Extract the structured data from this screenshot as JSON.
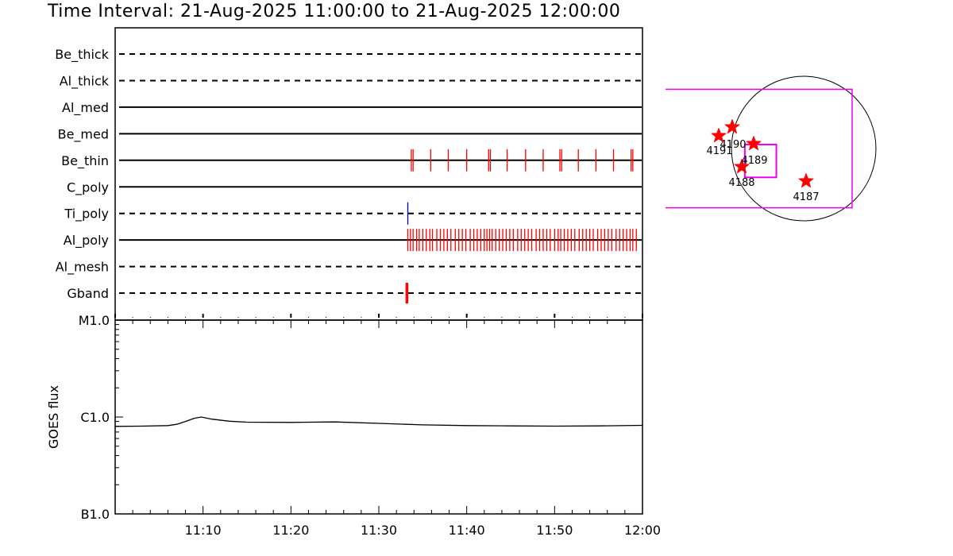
{
  "title": "Time Interval: 21-Aug-2025 11:00:00 to 21-Aug-2025 12:00:00",
  "chart_data": [
    {
      "type": "timeline",
      "x_range_minutes": [
        0,
        60
      ],
      "rows": [
        {
          "label": "Be_thick",
          "style": "dashed",
          "events": []
        },
        {
          "label": "Al_thick",
          "style": "dashed",
          "events": []
        },
        {
          "label": "Al_med",
          "style": "solid",
          "events": []
        },
        {
          "label": "Be_med",
          "style": "solid",
          "events": []
        },
        {
          "label": "Be_thin",
          "style": "solid",
          "color": "#ff0000",
          "events": [
            33.7,
            33.9,
            35.9,
            37.9,
            40.0,
            42.5,
            42.7,
            44.6,
            46.7,
            48.7,
            50.6,
            50.8,
            52.7,
            54.7,
            56.7,
            58.7,
            58.9
          ]
        },
        {
          "label": "C_poly",
          "style": "solid",
          "events": []
        },
        {
          "label": "Ti_poly",
          "style": "dashed",
          "color": "#0000cc",
          "events": [
            33.3
          ]
        },
        {
          "label": "Al_poly",
          "style": "solid",
          "color": "#ff0000",
          "events": [
            33.3,
            33.6,
            33.9,
            34.3,
            34.6,
            35.0,
            35.4,
            35.8,
            36.1,
            36.6,
            37.0,
            37.4,
            37.8,
            38.2,
            38.7,
            39.1,
            39.5,
            39.9,
            40.4,
            40.8,
            41.2,
            41.6,
            42.0,
            42.3,
            42.6,
            42.9,
            43.3,
            43.7,
            44.1,
            44.5,
            44.9,
            45.3,
            45.8,
            46.2,
            46.6,
            47.0,
            47.4,
            47.9,
            48.3,
            48.7,
            49.1,
            49.5,
            50.0,
            50.4,
            50.7,
            51.1,
            51.5,
            51.9,
            52.3,
            52.8,
            53.2,
            53.6,
            54.0,
            54.4,
            54.9,
            55.3,
            55.7,
            56.1,
            56.5,
            57.0,
            57.4,
            57.8,
            58.2,
            58.6,
            58.9,
            59.3
          ]
        },
        {
          "label": "Al_mesh",
          "style": "dashed",
          "events": []
        },
        {
          "label": "Gband",
          "style": "dashed",
          "color": "#ff0000",
          "events": [
            33.1,
            33.2,
            33.3
          ]
        }
      ]
    },
    {
      "type": "line",
      "ylabel": "GOES flux",
      "ylog": true,
      "ylim": [
        1e-07,
        1e-05
      ],
      "yticks": [
        {
          "label": "B1.0",
          "value": 1e-07
        },
        {
          "label": "C1.0",
          "value": 1e-06
        },
        {
          "label": "M1.0",
          "value": 1e-05
        }
      ],
      "xticks": [
        {
          "label": "11:10",
          "value": 10
        },
        {
          "label": "11:20",
          "value": 20
        },
        {
          "label": "11:30",
          "value": 30
        },
        {
          "label": "11:40",
          "value": 40
        },
        {
          "label": "11:50",
          "value": 50
        },
        {
          "label": "12:00",
          "value": 60
        }
      ],
      "x": [
        0,
        3,
        6,
        7,
        8,
        9,
        9.8,
        11,
        13,
        15,
        20,
        25,
        30,
        35,
        40,
        45,
        50,
        55,
        60
      ],
      "y": [
        8e-07,
        8.05e-07,
        8.15e-07,
        8.4e-07,
        9e-07,
        9.7e-07,
        1e-06,
        9.5e-07,
        9.05e-07,
        8.85e-07,
        8.8e-07,
        8.9e-07,
        8.6e-07,
        8.3e-07,
        8.15e-07,
        8.1e-07,
        8.05e-07,
        8.1e-07,
        8.2e-07
      ]
    },
    {
      "type": "scatter",
      "name": "solar-disk-map",
      "points": [
        {
          "label": "4187",
          "x": 0.67,
          "y": -0.32
        },
        {
          "label": "4188",
          "x": -0.09,
          "y": -0.17
        },
        {
          "label": "4189",
          "x": 0.06,
          "y": 0.04
        },
        {
          "label": "4190",
          "x": -0.18,
          "y": 0.19
        },
        {
          "label": "4191",
          "x": -0.28,
          "y": 0.11
        }
      ],
      "xlim": [
        -1.08,
        1.08
      ],
      "ylim": [
        -1.08,
        1.08
      ],
      "outer_box": {
        "x0": -0.82,
        "x1": 0.67,
        "y0": -0.82,
        "y1": 0.82
      },
      "selection_box": {
        "x0": -0.32,
        "x1": -0.06,
        "y0": -0.08,
        "y1": 0.22
      }
    }
  ]
}
